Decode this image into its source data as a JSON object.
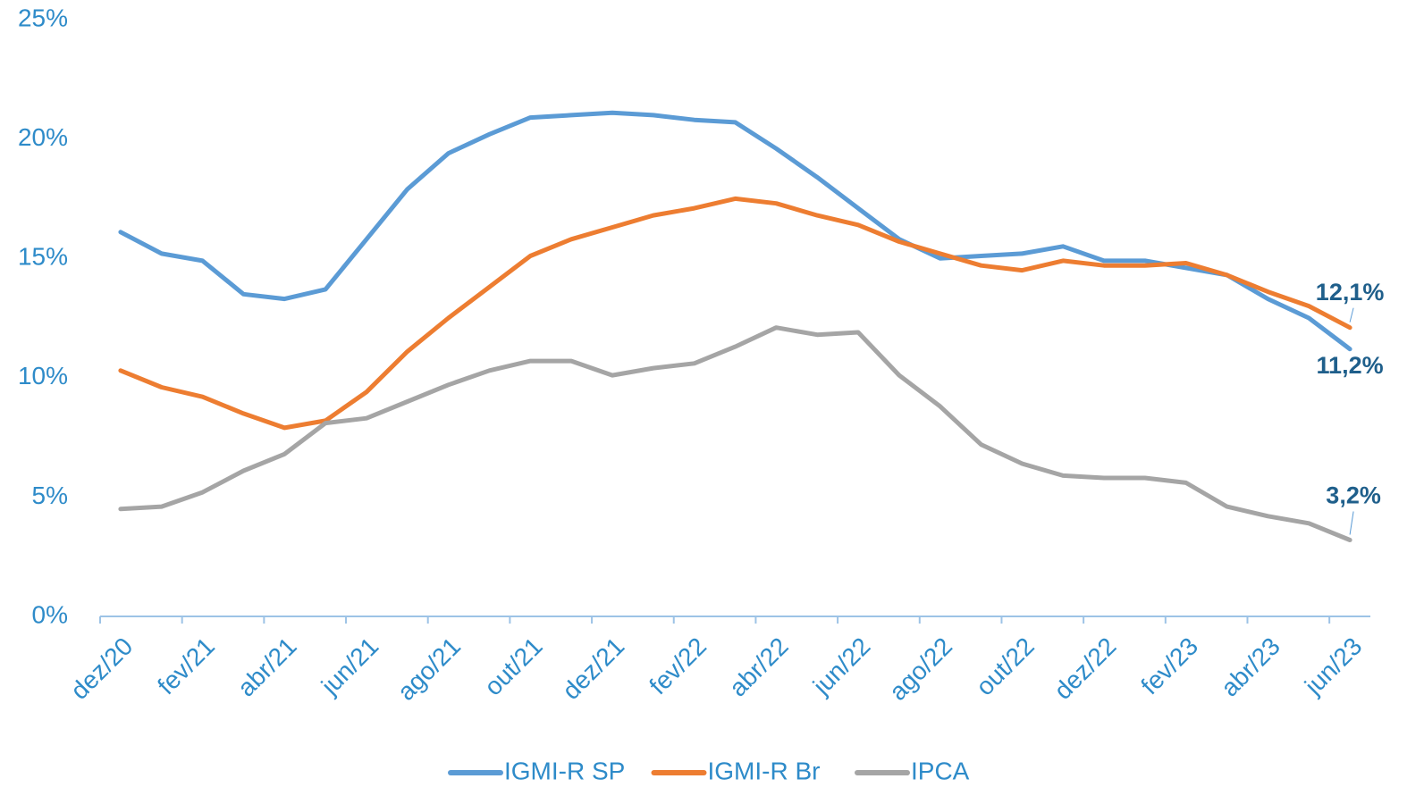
{
  "chart_data": {
    "type": "line",
    "categories": [
      "dez/20",
      null,
      "fev/21",
      null,
      "abr/21",
      null,
      "jun/21",
      null,
      "ago/21",
      null,
      "out/21",
      null,
      "dez/21",
      null,
      "fev/22",
      null,
      "abr/22",
      null,
      "jun/22",
      null,
      "ago/22",
      null,
      "out/22",
      null,
      "dez/22",
      null,
      "fev/23",
      null,
      "abr/23",
      null,
      "jun/23"
    ],
    "series": [
      {
        "name": "IGMI-R SP",
        "color": "#5b9bd5",
        "values": [
          16.1,
          15.2,
          14.9,
          13.5,
          13.3,
          13.7,
          15.8,
          17.9,
          19.4,
          20.2,
          20.9,
          21.0,
          21.1,
          21.0,
          20.8,
          20.7,
          19.6,
          18.4,
          17.1,
          15.8,
          15.0,
          15.1,
          15.2,
          15.5,
          14.9,
          14.9,
          14.6,
          14.3,
          13.3,
          12.5,
          11.2
        ],
        "value_labels": [
          null,
          null,
          null,
          null,
          null,
          null,
          null,
          null,
          null,
          null,
          null,
          null,
          null,
          null,
          null,
          null,
          null,
          null,
          null,
          null,
          null,
          null,
          null,
          null,
          null,
          null,
          null,
          null,
          null,
          null,
          "11,2%"
        ]
      },
      {
        "name": "IGMI-R Br",
        "color": "#ed7d31",
        "values": [
          10.3,
          9.6,
          9.2,
          8.5,
          7.9,
          8.2,
          9.4,
          11.1,
          12.5,
          13.8,
          15.1,
          15.8,
          16.3,
          16.8,
          17.1,
          17.5,
          17.3,
          16.8,
          16.4,
          15.7,
          15.2,
          14.7,
          14.5,
          14.9,
          14.7,
          14.7,
          14.8,
          14.3,
          13.6,
          13.0,
          12.1
        ],
        "value_labels": [
          null,
          null,
          null,
          null,
          null,
          null,
          null,
          null,
          null,
          null,
          null,
          null,
          null,
          null,
          null,
          null,
          null,
          null,
          null,
          null,
          null,
          null,
          null,
          null,
          null,
          null,
          null,
          null,
          null,
          null,
          "12,1%"
        ]
      },
      {
        "name": "IPCA",
        "color": "#a5a5a5",
        "values": [
          4.5,
          4.6,
          5.2,
          6.1,
          6.8,
          8.1,
          8.3,
          9.0,
          9.7,
          10.3,
          10.7,
          10.7,
          10.1,
          10.4,
          10.6,
          11.3,
          12.1,
          11.8,
          11.9,
          10.1,
          8.8,
          7.2,
          6.4,
          5.9,
          5.8,
          5.8,
          5.6,
          4.6,
          4.2,
          3.9,
          3.2
        ],
        "value_labels": [
          null,
          null,
          null,
          null,
          null,
          null,
          null,
          null,
          null,
          null,
          null,
          null,
          null,
          null,
          null,
          null,
          null,
          null,
          null,
          null,
          null,
          null,
          null,
          null,
          null,
          null,
          null,
          null,
          null,
          null,
          "3,2%"
        ]
      }
    ],
    "ylim": [
      0,
      25
    ],
    "yticks": [
      {
        "value": 0,
        "label": "0%"
      },
      {
        "value": 5,
        "label": "5%"
      },
      {
        "value": 10,
        "label": "10%"
      },
      {
        "value": 15,
        "label": "15%"
      },
      {
        "value": 20,
        "label": "20%"
      },
      {
        "value": 25,
        "label": "25%"
      }
    ],
    "grid": false,
    "legend": "bottom"
  }
}
